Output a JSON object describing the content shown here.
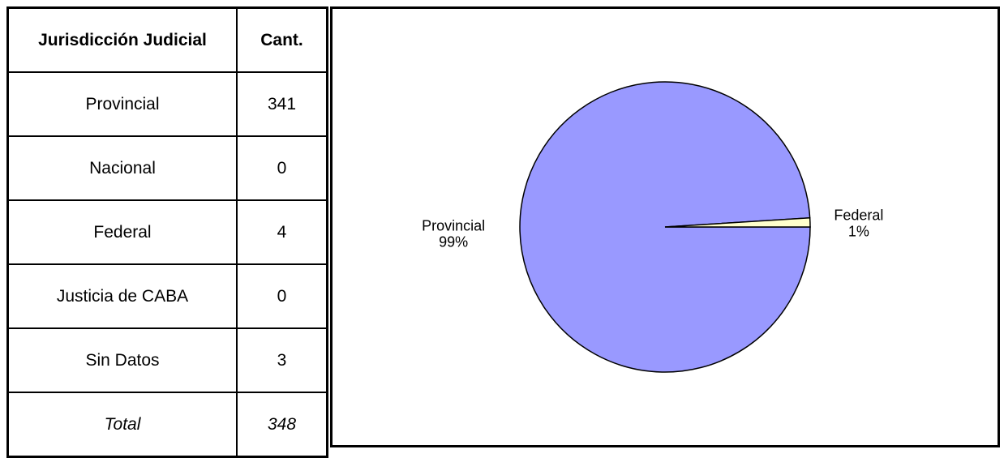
{
  "table": {
    "headers": [
      "Jurisdicción Judicial",
      "Cant."
    ],
    "rows": [
      [
        "Provincial",
        341
      ],
      [
        "Nacional",
        0
      ],
      [
        "Federal",
        4
      ],
      [
        "Justicia de CABA",
        0
      ],
      [
        "Sin Datos",
        3
      ]
    ],
    "total": [
      "Total",
      348
    ]
  },
  "chart_data": {
    "type": "pie",
    "categories": [
      "Provincial",
      "Federal"
    ],
    "values": [
      99,
      1
    ],
    "value_labels": [
      "99%",
      "1%"
    ],
    "colors": [
      "#9999ff",
      "#ffffcc"
    ]
  }
}
